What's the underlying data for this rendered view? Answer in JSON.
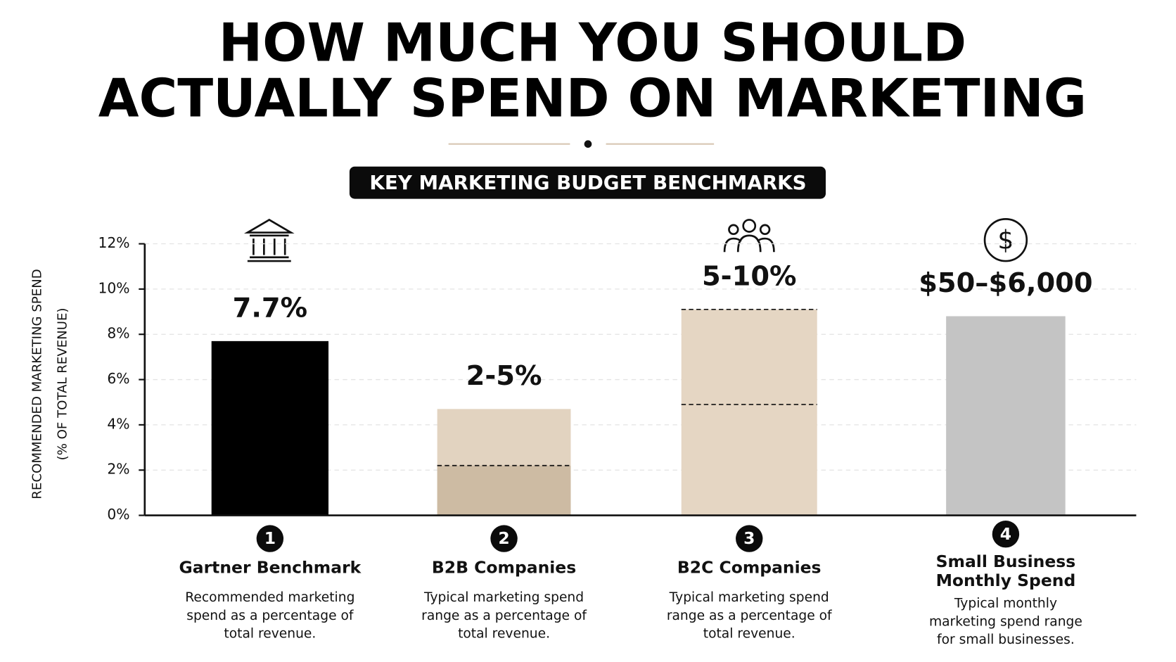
{
  "title": [
    "HOW MUCH YOU SHOULD",
    "ACTUALLY SPEND ON MARKETING"
  ],
  "badge": "KEY MARKETING BUDGET BENCHMARKS",
  "chart_data": {
    "type": "bar",
    "ylabel": [
      "RECOMMENDED MARKETING SPEND",
      "(% OF TOTAL REVENUE)"
    ],
    "categories": [
      "Gartner Benchmark",
      "B2B Companies",
      "B2C Companies",
      "Small Business Monthly Spend"
    ],
    "values": [
      7.7,
      4.7,
      9.1,
      8.8
    ],
    "headlines": [
      "7.7%",
      "2-5%",
      "5-10%",
      "$50–$6,000"
    ],
    "colors": [
      "#000000",
      "#e2d3c0",
      "#e5d6c3",
      "#c4c4c4"
    ],
    "markers": [
      [],
      [
        2.2
      ],
      [
        4.9,
        9.1
      ],
      []
    ],
    "marker_fill": [
      null,
      "#cdbba3",
      null,
      null
    ],
    "steps": [
      1,
      2,
      3,
      4
    ],
    "descriptions": [
      "Recommended marketing spend as a percentage of total revenue.",
      "Typical marketing spend range as a percentage of total revenue.",
      "Typical marketing spend range as a percentage of total revenue.",
      "Typical monthly marketing spend range for small businesses."
    ],
    "ylim": [
      0,
      12
    ],
    "yticks": [
      {
        "value": 0,
        "label": "0%"
      },
      {
        "value": 2,
        "label": "2%"
      },
      {
        "value": 4,
        "label": "4%"
      },
      {
        "value": 6,
        "label": "6%"
      },
      {
        "value": 8,
        "label": "8%"
      },
      {
        "value": 10,
        "label": "10%"
      },
      {
        "value": 12,
        "label": "12%"
      }
    ],
    "grid": true
  }
}
